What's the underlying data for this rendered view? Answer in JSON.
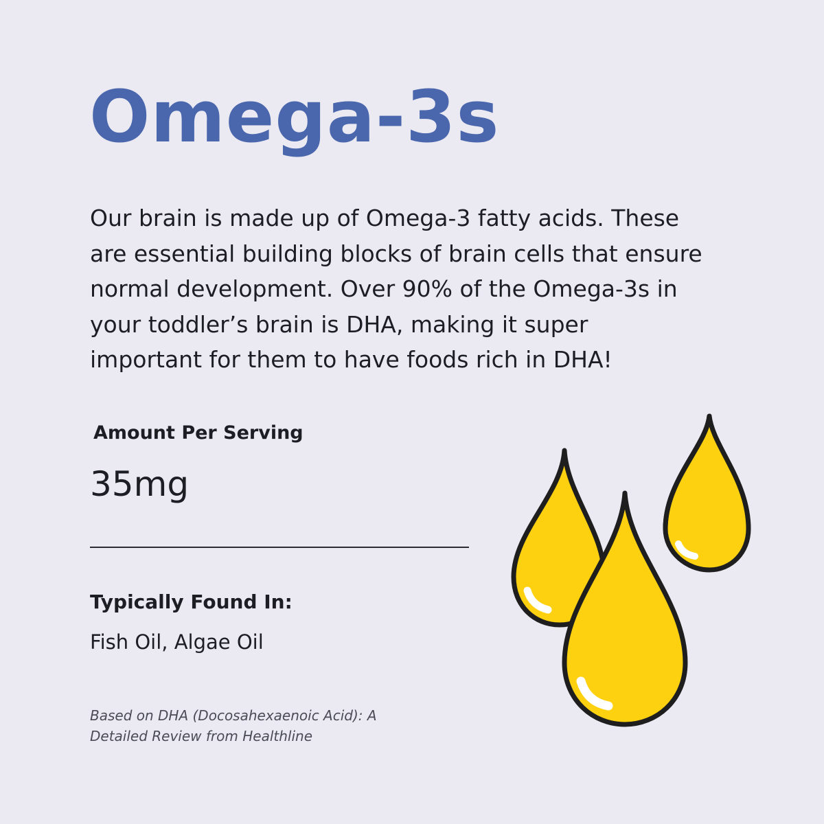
{
  "title": "Omega-3s",
  "intro_lines": [
    "Our brain is made up of Omega-3 fatty acids. These",
    "are essential building blocks of brain cells that ensure",
    "normal development. Over 90% of the Omega-3s in",
    "your toddler’s brain is DHA, making it super",
    "important for them to have foods rich in DHA!"
  ],
  "amount": {
    "label": "Amount Per Serving",
    "value": "35mg"
  },
  "found_in": {
    "label": "Typically Found In:",
    "value": "Fish Oil, Algae Oil"
  },
  "source_lines": [
    "Based on DHA (Docosahexaenoic Acid): A",
    "Detailed Review from Healthline"
  ],
  "illustration": {
    "icon": "oil-drops-icon",
    "colors": {
      "drop_fill": "#fdd10f",
      "drop_shade": "#f2c600",
      "outline": "#1e1e1e",
      "highlight": "#ffffff",
      "title": "#4a67ad",
      "background": "#ebeaf3"
    }
  }
}
